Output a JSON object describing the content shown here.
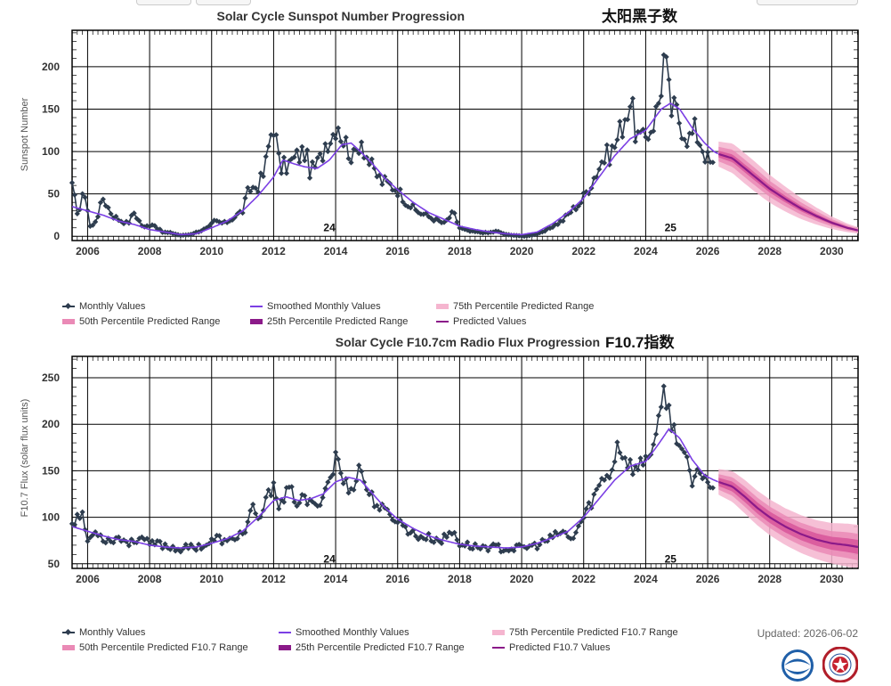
{
  "colors": {
    "monthly": "#2e3d4f",
    "smoothed": "#7b3fe4",
    "predicted": "#8b1a89",
    "range75": "#f5b5cf",
    "range50": "#ea8ab6",
    "range25": "#d8559a"
  },
  "updated": "Updated: 2026-06-02",
  "chart_data": [
    {
      "type": "line",
      "title": "Solar Cycle Sunspot Number Progression",
      "title_cn": "太阳黑子数",
      "ylabel": "Sunspot Number",
      "xlim": [
        2005.5,
        2030.85
      ],
      "ylim": [
        -5,
        243
      ],
      "x_ticks": [
        2006,
        2008,
        2010,
        2012,
        2014,
        2016,
        2018,
        2020,
        2022,
        2024,
        2026,
        2028,
        2030
      ],
      "y_ticks": [
        0,
        50,
        100,
        150,
        200
      ],
      "grid": true,
      "cycle_labels": [
        {
          "text": "24",
          "x": 2013.8,
          "y": 10
        },
        {
          "text": "25",
          "x": 2024.8,
          "y": 10
        }
      ],
      "monthly_anchors": [
        [
          2005.5,
          57
        ],
        [
          2005.7,
          25
        ],
        [
          2005.9,
          55
        ],
        [
          2006.1,
          8
        ],
        [
          2006.3,
          22
        ],
        [
          2006.5,
          45
        ],
        [
          2006.8,
          25
        ],
        [
          2007.0,
          20
        ],
        [
          2007.3,
          15
        ],
        [
          2007.5,
          28
        ],
        [
          2007.8,
          10
        ],
        [
          2008.1,
          15
        ],
        [
          2008.4,
          5
        ],
        [
          2008.7,
          4
        ],
        [
          2009.0,
          1
        ],
        [
          2009.3,
          2
        ],
        [
          2009.6,
          6
        ],
        [
          2009.9,
          10
        ],
        [
          2010.1,
          18
        ],
        [
          2010.4,
          15
        ],
        [
          2010.7,
          22
        ],
        [
          2011.0,
          30
        ],
        [
          2011.2,
          55
        ],
        [
          2011.5,
          60
        ],
        [
          2011.7,
          75
        ],
        [
          2011.9,
          120
        ],
        [
          2012.0,
          135
        ],
        [
          2012.2,
          80
        ],
        [
          2012.5,
          85
        ],
        [
          2012.8,
          95
        ],
        [
          2013.0,
          100
        ],
        [
          2013.2,
          75
        ],
        [
          2013.5,
          90
        ],
        [
          2013.7,
          115
        ],
        [
          2013.9,
          120
        ],
        [
          2014.05,
          140
        ],
        [
          2014.2,
          118
        ],
        [
          2014.4,
          105
        ],
        [
          2014.6,
          90
        ],
        [
          2014.8,
          120
        ],
        [
          2015.0,
          95
        ],
        [
          2015.2,
          78
        ],
        [
          2015.5,
          65
        ],
        [
          2015.8,
          60
        ],
        [
          2016.0,
          55
        ],
        [
          2016.3,
          40
        ],
        [
          2016.6,
          30
        ],
        [
          2016.9,
          25
        ],
        [
          2017.2,
          20
        ],
        [
          2017.5,
          15
        ],
        [
          2017.8,
          28
        ],
        [
          2018.0,
          10
        ],
        [
          2018.3,
          6
        ],
        [
          2018.6,
          5
        ],
        [
          2018.9,
          4
        ],
        [
          2019.2,
          6
        ],
        [
          2019.5,
          2
        ],
        [
          2019.8,
          1
        ],
        [
          2020.1,
          0
        ],
        [
          2020.4,
          2
        ],
        [
          2020.7,
          5
        ],
        [
          2021.0,
          12
        ],
        [
          2021.3,
          18
        ],
        [
          2021.6,
          30
        ],
        [
          2021.9,
          40
        ],
        [
          2022.2,
          60
        ],
        [
          2022.4,
          75
        ],
        [
          2022.6,
          90
        ],
        [
          2022.9,
          100
        ],
        [
          2023.1,
          115
        ],
        [
          2023.3,
          140
        ],
        [
          2023.5,
          160
        ],
        [
          2023.7,
          120
        ],
        [
          2023.9,
          110
        ],
        [
          2024.1,
          125
        ],
        [
          2024.3,
          140
        ],
        [
          2024.45,
          165
        ],
        [
          2024.6,
          215
        ],
        [
          2024.8,
          150
        ],
        [
          2025.0,
          145
        ],
        [
          2025.2,
          130
        ],
        [
          2025.4,
          115
        ],
        [
          2025.6,
          125
        ],
        [
          2025.8,
          110
        ],
        [
          2026.0,
          90
        ],
        [
          2026.2,
          80
        ]
      ],
      "smoothed_anchors": [
        [
          2005.5,
          35
        ],
        [
          2006.0,
          30
        ],
        [
          2006.5,
          25
        ],
        [
          2007.0,
          18
        ],
        [
          2007.5,
          14
        ],
        [
          2008.0,
          8
        ],
        [
          2008.5,
          5
        ],
        [
          2009.0,
          2
        ],
        [
          2009.5,
          3
        ],
        [
          2010.0,
          10
        ],
        [
          2010.5,
          18
        ],
        [
          2011.0,
          30
        ],
        [
          2011.5,
          48
        ],
        [
          2012.0,
          70
        ],
        [
          2012.3,
          90
        ],
        [
          2012.7,
          85
        ],
        [
          2013.0,
          82
        ],
        [
          2013.4,
          80
        ],
        [
          2013.8,
          90
        ],
        [
          2014.2,
          108
        ],
        [
          2014.5,
          110
        ],
        [
          2014.8,
          100
        ],
        [
          2015.2,
          85
        ],
        [
          2015.6,
          68
        ],
        [
          2016.0,
          55
        ],
        [
          2016.5,
          40
        ],
        [
          2017.0,
          28
        ],
        [
          2017.5,
          20
        ],
        [
          2018.0,
          12
        ],
        [
          2018.5,
          8
        ],
        [
          2019.0,
          5
        ],
        [
          2019.5,
          3
        ],
        [
          2020.0,
          2
        ],
        [
          2020.5,
          5
        ],
        [
          2021.0,
          15
        ],
        [
          2021.5,
          28
        ],
        [
          2022.0,
          45
        ],
        [
          2022.5,
          70
        ],
        [
          2023.0,
          95
        ],
        [
          2023.5,
          115
        ],
        [
          2024.0,
          125
        ],
        [
          2024.5,
          150
        ],
        [
          2024.8,
          157
        ],
        [
          2025.1,
          150
        ],
        [
          2025.5,
          128
        ],
        [
          2025.9,
          110
        ],
        [
          2026.2,
          100
        ],
        [
          2026.35,
          97
        ]
      ],
      "predicted_anchors": [
        [
          2026.35,
          97
        ],
        [
          2026.8,
          92
        ],
        [
          2027.2,
          80
        ],
        [
          2027.6,
          68
        ],
        [
          2028.0,
          56
        ],
        [
          2028.5,
          44
        ],
        [
          2029.0,
          33
        ],
        [
          2029.5,
          24
        ],
        [
          2030.0,
          16
        ],
        [
          2030.5,
          10
        ],
        [
          2030.85,
          7
        ]
      ],
      "range_spread": {
        "r25": 0.1,
        "r50": 0.22,
        "r75": 0.38
      },
      "legend": [
        {
          "kind": "marker",
          "label": "Monthly Values"
        },
        {
          "kind": "line",
          "color": "#7b3fe4",
          "label": "Smoothed Monthly Values"
        },
        {
          "kind": "box",
          "color": "#f5b5cf",
          "label": "75th Percentile Predicted Range"
        },
        {
          "kind": "box",
          "color": "#ea8ab6",
          "label": "50th Percentile Predicted Range"
        },
        {
          "kind": "box",
          "color": "#8b1a89",
          "label": "25th Percentile Predicted Range"
        },
        {
          "kind": "line",
          "color": "#8b1a89",
          "label": "Predicted Values"
        }
      ]
    },
    {
      "type": "line",
      "title": "Solar Cycle F10.7cm Radio Flux Progression",
      "title_cn": "F10.7指数",
      "ylabel": "F10.7 Flux (solar flux units)",
      "xlim": [
        2005.5,
        2030.85
      ],
      "ylim": [
        45,
        273
      ],
      "x_ticks": [
        2006,
        2008,
        2010,
        2012,
        2014,
        2016,
        2018,
        2020,
        2022,
        2024,
        2026,
        2028,
        2030
      ],
      "y_ticks": [
        50,
        100,
        150,
        200,
        250
      ],
      "grid": true,
      "cycle_labels": [
        {
          "text": "24",
          "x": 2013.8,
          "y": 55
        },
        {
          "text": "25",
          "x": 2024.8,
          "y": 55
        }
      ],
      "monthly_anchors": [
        [
          2005.5,
          95
        ],
        [
          2005.8,
          105
        ],
        [
          2006.0,
          75
        ],
        [
          2006.3,
          85
        ],
        [
          2006.6,
          75
        ],
        [
          2007.0,
          78
        ],
        [
          2007.4,
          72
        ],
        [
          2007.7,
          80
        ],
        [
          2008.0,
          70
        ],
        [
          2008.3,
          72
        ],
        [
          2008.6,
          68
        ],
        [
          2009.0,
          66
        ],
        [
          2009.4,
          68
        ],
        [
          2009.8,
          70
        ],
        [
          2010.2,
          78
        ],
        [
          2010.5,
          72
        ],
        [
          2010.8,
          80
        ],
        [
          2011.1,
          85
        ],
        [
          2011.3,
          110
        ],
        [
          2011.5,
          95
        ],
        [
          2011.8,
          120
        ],
        [
          2012.0,
          138
        ],
        [
          2012.2,
          110
        ],
        [
          2012.5,
          130
        ],
        [
          2012.8,
          115
        ],
        [
          2013.0,
          120
        ],
        [
          2013.3,
          110
        ],
        [
          2013.6,
          125
        ],
        [
          2013.9,
          150
        ],
        [
          2014.05,
          170
        ],
        [
          2014.2,
          140
        ],
        [
          2014.5,
          130
        ],
        [
          2014.8,
          155
        ],
        [
          2015.0,
          130
        ],
        [
          2015.3,
          115
        ],
        [
          2015.6,
          105
        ],
        [
          2015.9,
          100
        ],
        [
          2016.2,
          90
        ],
        [
          2016.6,
          80
        ],
        [
          2017.0,
          78
        ],
        [
          2017.4,
          75
        ],
        [
          2017.8,
          85
        ],
        [
          2018.0,
          72
        ],
        [
          2018.5,
          68
        ],
        [
          2019.0,
          68
        ],
        [
          2019.5,
          66
        ],
        [
          2020.0,
          67
        ],
        [
          2020.5,
          70
        ],
        [
          2021.0,
          78
        ],
        [
          2021.3,
          85
        ],
        [
          2021.6,
          75
        ],
        [
          2022.0,
          100
        ],
        [
          2022.3,
          120
        ],
        [
          2022.6,
          140
        ],
        [
          2022.9,
          150
        ],
        [
          2023.1,
          180
        ],
        [
          2023.4,
          160
        ],
        [
          2023.7,
          150
        ],
        [
          2024.0,
          165
        ],
        [
          2024.3,
          180
        ],
        [
          2024.5,
          210
        ],
        [
          2024.6,
          245
        ],
        [
          2024.8,
          200
        ],
        [
          2025.0,
          190
        ],
        [
          2025.3,
          160
        ],
        [
          2025.5,
          135
        ],
        [
          2025.8,
          150
        ],
        [
          2026.0,
          140
        ],
        [
          2026.2,
          125
        ]
      ],
      "smoothed_anchors": [
        [
          2005.5,
          90
        ],
        [
          2006.0,
          85
        ],
        [
          2006.5,
          80
        ],
        [
          2007.0,
          76
        ],
        [
          2007.5,
          74
        ],
        [
          2008.0,
          70
        ],
        [
          2008.5,
          68
        ],
        [
          2009.0,
          67
        ],
        [
          2009.5,
          68
        ],
        [
          2010.0,
          72
        ],
        [
          2010.5,
          77
        ],
        [
          2011.0,
          85
        ],
        [
          2011.5,
          100
        ],
        [
          2012.0,
          118
        ],
        [
          2012.4,
          122
        ],
        [
          2012.8,
          118
        ],
        [
          2013.2,
          120
        ],
        [
          2013.6,
          125
        ],
        [
          2014.0,
          138
        ],
        [
          2014.4,
          143
        ],
        [
          2014.8,
          140
        ],
        [
          2015.2,
          125
        ],
        [
          2015.6,
          110
        ],
        [
          2016.0,
          98
        ],
        [
          2016.5,
          88
        ],
        [
          2017.0,
          80
        ],
        [
          2017.5,
          75
        ],
        [
          2018.0,
          71
        ],
        [
          2018.5,
          69
        ],
        [
          2019.0,
          68
        ],
        [
          2019.5,
          67
        ],
        [
          2020.0,
          68
        ],
        [
          2020.5,
          72
        ],
        [
          2021.0,
          78
        ],
        [
          2021.5,
          85
        ],
        [
          2022.0,
          100
        ],
        [
          2022.5,
          120
        ],
        [
          2023.0,
          140
        ],
        [
          2023.5,
          155
        ],
        [
          2024.0,
          160
        ],
        [
          2024.4,
          178
        ],
        [
          2024.75,
          195
        ],
        [
          2025.1,
          185
        ],
        [
          2025.5,
          162
        ],
        [
          2025.9,
          145
        ],
        [
          2026.2,
          140
        ],
        [
          2026.35,
          138
        ]
      ],
      "predicted_anchors": [
        [
          2026.35,
          138
        ],
        [
          2026.8,
          133
        ],
        [
          2027.2,
          122
        ],
        [
          2027.6,
          110
        ],
        [
          2028.0,
          100
        ],
        [
          2028.5,
          90
        ],
        [
          2029.0,
          82
        ],
        [
          2029.5,
          76
        ],
        [
          2030.0,
          72
        ],
        [
          2030.5,
          70
        ],
        [
          2030.85,
          68
        ]
      ],
      "range_spread": {
        "r25": 0.08,
        "r50": 0.15,
        "r75": 0.25
      },
      "legend": [
        {
          "kind": "marker",
          "label": "Monthly Values"
        },
        {
          "kind": "line",
          "color": "#7b3fe4",
          "label": "Smoothed Monthly Values"
        },
        {
          "kind": "box",
          "color": "#f5b5cf",
          "label": "75th Percentile Predicted F10.7 Range"
        },
        {
          "kind": "box",
          "color": "#ea8ab6",
          "label": "50th Percentile Predicted F10.7 Range"
        },
        {
          "kind": "box",
          "color": "#8b1a89",
          "label": "25th Percentile Predicted F10.7 Range"
        },
        {
          "kind": "line",
          "color": "#8b1a89",
          "label": "Predicted F10.7 Values"
        }
      ]
    }
  ]
}
